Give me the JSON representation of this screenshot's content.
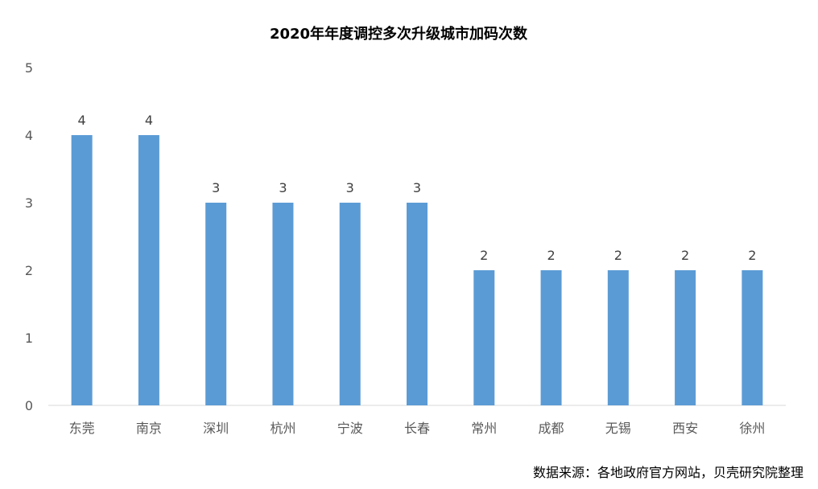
{
  "chart_data": {
    "type": "bar",
    "title": "2020年年度调控多次升级城市加码次数",
    "categories": [
      "东莞",
      "南京",
      "深圳",
      "杭州",
      "宁波",
      "长春",
      "常州",
      "成都",
      "无锡",
      "西安",
      "徐州"
    ],
    "values": [
      4,
      4,
      3,
      3,
      3,
      3,
      2,
      2,
      2,
      2,
      2
    ],
    "data_labels": [
      "4",
      "4",
      "3",
      "3",
      "3",
      "3",
      "2",
      "2",
      "2",
      "2",
      "2"
    ],
    "y_ticks": [
      "0",
      "1",
      "2",
      "3",
      "4",
      "5"
    ],
    "ylim": [
      0,
      5
    ],
    "grid": false,
    "bar_color": "#5B9BD5",
    "axis_color": "#d9d9d9"
  },
  "source_note": "数据来源：各地政府官方网站，贝壳研究院整理"
}
